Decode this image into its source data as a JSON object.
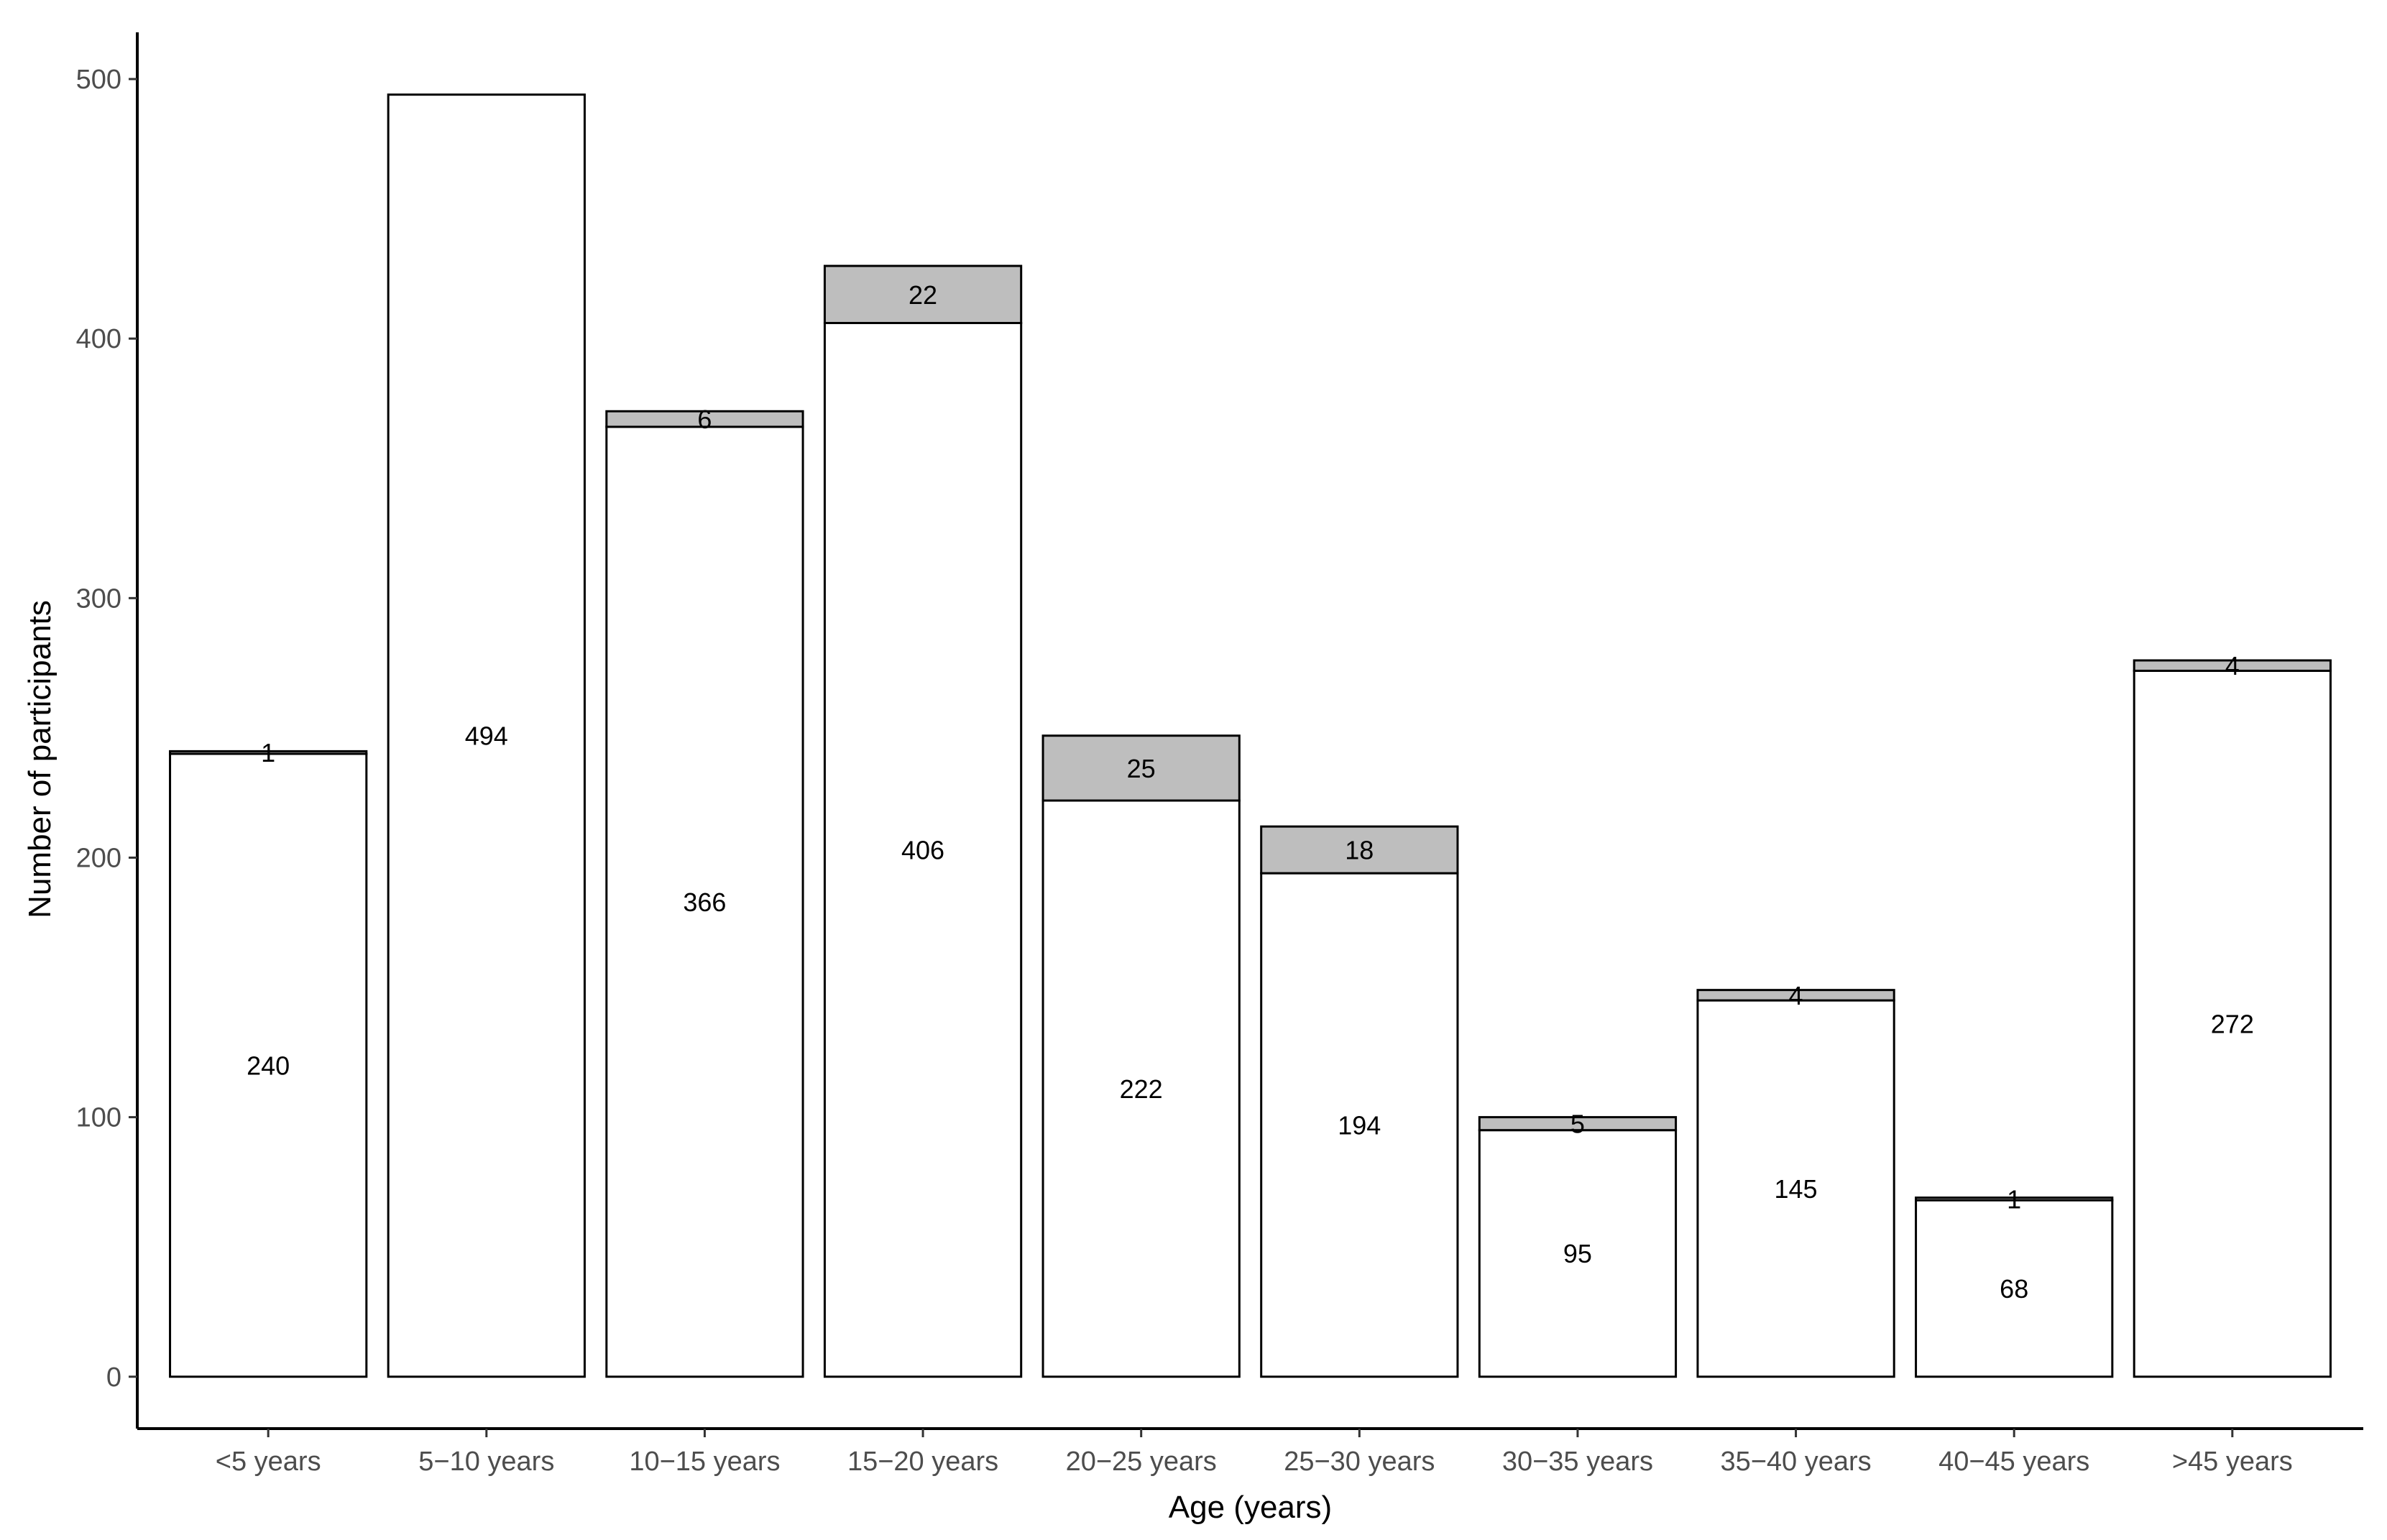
{
  "chart_data": {
    "type": "bar",
    "stacked": true,
    "title": "",
    "xlabel": "Age (years)",
    "ylabel": "Number of participants",
    "ylim": [
      -20,
      518
    ],
    "yticks": [
      0,
      100,
      200,
      300,
      400,
      500
    ],
    "grid": false,
    "legend": "none",
    "categories": [
      "<5 years",
      "5−10 years",
      "10−15 years",
      "15−20 years",
      "20−25 years",
      "25−30 years",
      "30−35 years",
      "35−40 years",
      "40−45 years",
      ">45 years"
    ],
    "series": [
      {
        "color": "#ffffff",
        "values": [
          240,
          494,
          366,
          406,
          222,
          194,
          95,
          145,
          68,
          272
        ],
        "labels": [
          "240",
          "494",
          "366",
          "406",
          "222",
          "194",
          "95",
          "145",
          "68",
          "272"
        ]
      },
      {
        "color": "#bebebe",
        "values": [
          1,
          0,
          6,
          22,
          25,
          18,
          5,
          4,
          1,
          4
        ],
        "labels": [
          "1",
          "",
          "6",
          "22",
          "25",
          "18",
          "5",
          "4",
          "1",
          "4"
        ]
      }
    ]
  }
}
